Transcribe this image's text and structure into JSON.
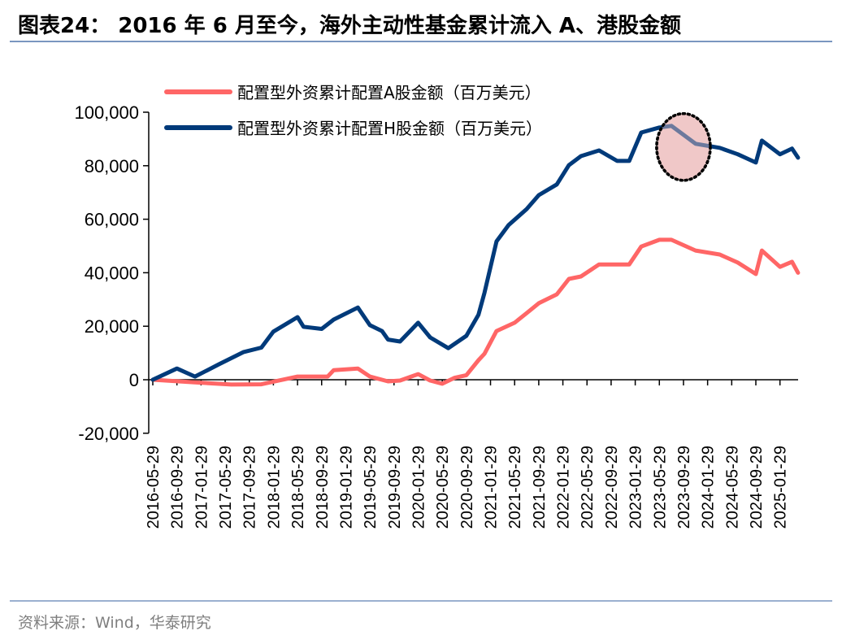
{
  "title": "图表24：  2016 年 6 月至今，海外主动性基金累计流入 A、港股金额",
  "source": "资料来源：Wind，华泰研究",
  "colors": {
    "a_share": "#ff6666",
    "h_share": "#003a7a",
    "rule": "#7a96c0",
    "highlight_fill": "#f0c8c8"
  },
  "chart_data": {
    "type": "line",
    "title": "",
    "xlabel": "",
    "ylabel": "",
    "ylim": [
      -20000,
      100000
    ],
    "yticks": [
      -20000,
      0,
      20000,
      40000,
      60000,
      80000,
      100000
    ],
    "ytick_labels": [
      "-20,000",
      "0",
      "20,000",
      "40,000",
      "60,000",
      "80,000",
      "100,000"
    ],
    "xtick_labels": [
      "2016-05-29",
      "2016-09-29",
      "2017-01-29",
      "2017-05-29",
      "2017-09-29",
      "2018-01-29",
      "2018-05-29",
      "2018-09-29",
      "2019-01-29",
      "2019-05-29",
      "2019-09-29",
      "2020-01-29",
      "2020-05-29",
      "2020-09-29",
      "2021-01-29",
      "2021-05-29",
      "2021-09-29",
      "2022-01-29",
      "2022-05-29",
      "2022-09-29",
      "2023-01-29",
      "2023-05-29",
      "2023-09-29",
      "2024-01-29",
      "2024-05-29",
      "2024-09-29",
      "2025-01-29"
    ],
    "grid": false,
    "legend_position": "top-left",
    "series": [
      {
        "name": "配置型外资累计配置A股金额（百万美元）",
        "color": "#ff6666",
        "points": [
          [
            "2016-05",
            0
          ],
          [
            "2016-12",
            -1000
          ],
          [
            "2017-06",
            -1800
          ],
          [
            "2017-11",
            -1700
          ],
          [
            "2018-05",
            1200
          ],
          [
            "2018-10",
            1200
          ],
          [
            "2018-11",
            3600
          ],
          [
            "2019-03",
            4200
          ],
          [
            "2019-05",
            1200
          ],
          [
            "2019-08",
            -600
          ],
          [
            "2019-10",
            -300
          ],
          [
            "2020-01",
            2100
          ],
          [
            "2020-03",
            -300
          ],
          [
            "2020-05",
            -1500
          ],
          [
            "2020-07",
            700
          ],
          [
            "2020-09",
            1700
          ],
          [
            "2020-11",
            7300
          ],
          [
            "2020-12",
            9700
          ],
          [
            "2021-02",
            18200
          ],
          [
            "2021-05",
            21300
          ],
          [
            "2021-07",
            24900
          ],
          [
            "2021-09",
            28600
          ],
          [
            "2021-12",
            31900
          ],
          [
            "2022-02",
            37700
          ],
          [
            "2022-04",
            38600
          ],
          [
            "2022-07",
            43100
          ],
          [
            "2022-10",
            43100
          ],
          [
            "2022-12",
            43100
          ],
          [
            "2023-02",
            49800
          ],
          [
            "2023-05",
            52300
          ],
          [
            "2023-07",
            52300
          ],
          [
            "2023-11",
            48300
          ],
          [
            "2024-03",
            46800
          ],
          [
            "2024-06",
            43800
          ],
          [
            "2024-09",
            39500
          ],
          [
            "2024-10",
            48300
          ],
          [
            "2025-01",
            42200
          ],
          [
            "2025-03",
            44100
          ],
          [
            "2025-04",
            40000
          ]
        ]
      },
      {
        "name": "配置型外资累计配置H股金额（百万美元）",
        "color": "#003a7a",
        "points": [
          [
            "2016-05",
            0
          ],
          [
            "2016-09",
            4200
          ],
          [
            "2016-12",
            1200
          ],
          [
            "2017-04",
            5800
          ],
          [
            "2017-08",
            10300
          ],
          [
            "2017-11",
            12000
          ],
          [
            "2018-01",
            18000
          ],
          [
            "2018-05",
            23400
          ],
          [
            "2018-06",
            19800
          ],
          [
            "2018-09",
            19000
          ],
          [
            "2018-11",
            22500
          ],
          [
            "2019-03",
            27000
          ],
          [
            "2019-05",
            20400
          ],
          [
            "2019-07",
            18200
          ],
          [
            "2019-08",
            15000
          ],
          [
            "2019-10",
            14300
          ],
          [
            "2020-01",
            21300
          ],
          [
            "2020-03",
            15800
          ],
          [
            "2020-06",
            11800
          ],
          [
            "2020-09",
            16400
          ],
          [
            "2020-11",
            24300
          ],
          [
            "2020-12",
            32500
          ],
          [
            "2021-02",
            51700
          ],
          [
            "2021-04",
            57800
          ],
          [
            "2021-07",
            63800
          ],
          [
            "2021-09",
            69000
          ],
          [
            "2021-12",
            73000
          ],
          [
            "2022-02",
            80200
          ],
          [
            "2022-04",
            83600
          ],
          [
            "2022-07",
            85700
          ],
          [
            "2022-10",
            81800
          ],
          [
            "2022-12",
            81800
          ],
          [
            "2023-02",
            92400
          ],
          [
            "2023-05",
            94300
          ],
          [
            "2023-07",
            94900
          ],
          [
            "2023-11",
            88200
          ],
          [
            "2024-03",
            86700
          ],
          [
            "2024-06",
            84300
          ],
          [
            "2024-09",
            81200
          ],
          [
            "2024-10",
            89400
          ],
          [
            "2025-01",
            84300
          ],
          [
            "2025-03",
            86400
          ],
          [
            "2025-04",
            83000
          ]
        ]
      }
    ],
    "highlight": {
      "shape": "dotted-ellipse",
      "x": "2023-09",
      "y": 87000
    }
  }
}
